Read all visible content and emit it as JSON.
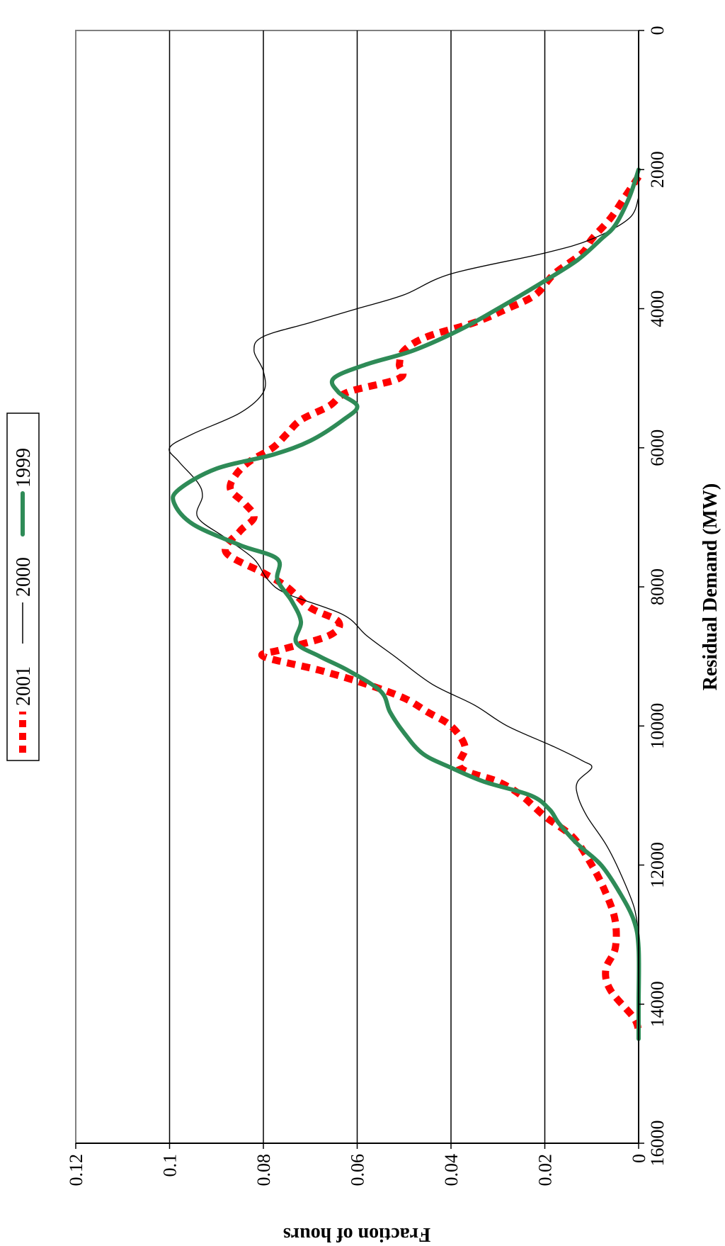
{
  "chart_data": {
    "type": "line",
    "title": "",
    "xlabel": "Residual Demand (MW)",
    "ylabel": "Fraction of hours",
    "xlim": [
      0,
      16000
    ],
    "ylim": [
      0,
      0.12
    ],
    "x_ticks": [
      0,
      2000,
      4000,
      6000,
      8000,
      10000,
      12000,
      14000,
      16000
    ],
    "y_ticks": [
      0,
      0.02,
      0.04,
      0.06,
      0.08,
      0.1,
      0.12
    ],
    "x_tick_labels": [
      "0",
      "2000",
      "4000",
      "6000",
      "8000",
      "10000",
      "12000",
      "14000",
      "16000"
    ],
    "y_tick_labels": [
      "0",
      "0.02",
      "0.04",
      "0.06",
      "0.08",
      "0.1",
      "0.12"
    ],
    "grid": "horizontal",
    "legend_position": "top",
    "orientation": "rotated-90",
    "series": [
      {
        "name": "2001",
        "color": "#ff0000",
        "style": "dashed",
        "points": [
          [
            2100,
            0.0
          ],
          [
            2400,
            0.003
          ],
          [
            2700,
            0.006
          ],
          [
            3000,
            0.01
          ],
          [
            3200,
            0.012
          ],
          [
            3500,
            0.018
          ],
          [
            3800,
            0.022
          ],
          [
            4000,
            0.028
          ],
          [
            4200,
            0.035
          ],
          [
            4400,
            0.045
          ],
          [
            4600,
            0.05
          ],
          [
            4800,
            0.051
          ],
          [
            5000,
            0.051
          ],
          [
            5200,
            0.062
          ],
          [
            5400,
            0.066
          ],
          [
            5600,
            0.072
          ],
          [
            5800,
            0.075
          ],
          [
            6000,
            0.078
          ],
          [
            6200,
            0.083
          ],
          [
            6400,
            0.086
          ],
          [
            6600,
            0.087
          ],
          [
            6800,
            0.084
          ],
          [
            7000,
            0.082
          ],
          [
            7200,
            0.085
          ],
          [
            7500,
            0.088
          ],
          [
            7800,
            0.08
          ],
          [
            8000,
            0.075
          ],
          [
            8300,
            0.07
          ],
          [
            8500,
            0.064
          ],
          [
            8700,
            0.066
          ],
          [
            8900,
            0.076
          ],
          [
            9000,
            0.08
          ],
          [
            9200,
            0.068
          ],
          [
            9400,
            0.058
          ],
          [
            9600,
            0.05
          ],
          [
            9800,
            0.045
          ],
          [
            10000,
            0.04
          ],
          [
            10300,
            0.037
          ],
          [
            10600,
            0.038
          ],
          [
            10800,
            0.03
          ],
          [
            11000,
            0.025
          ],
          [
            11300,
            0.02
          ],
          [
            11600,
            0.014
          ],
          [
            12000,
            0.01
          ],
          [
            12400,
            0.007
          ],
          [
            12800,
            0.005
          ],
          [
            13200,
            0.005
          ],
          [
            13500,
            0.007
          ],
          [
            13800,
            0.006
          ],
          [
            14200,
            0.001
          ],
          [
            14400,
            0.0
          ]
        ]
      },
      {
        "name": "2000",
        "color": "#000000",
        "style": "solid-thin",
        "points": [
          [
            2400,
            0.0
          ],
          [
            2700,
            0.002
          ],
          [
            3000,
            0.01
          ],
          [
            3200,
            0.02
          ],
          [
            3500,
            0.04
          ],
          [
            3800,
            0.05
          ],
          [
            4000,
            0.06
          ],
          [
            4200,
            0.07
          ],
          [
            4400,
            0.08
          ],
          [
            4600,
            0.082
          ],
          [
            4900,
            0.08
          ],
          [
            5200,
            0.08
          ],
          [
            5500,
            0.085
          ],
          [
            5800,
            0.095
          ],
          [
            6000,
            0.1
          ],
          [
            6200,
            0.098
          ],
          [
            6500,
            0.094
          ],
          [
            6700,
            0.093
          ],
          [
            7000,
            0.094
          ],
          [
            7300,
            0.088
          ],
          [
            7600,
            0.082
          ],
          [
            7900,
            0.079
          ],
          [
            8100,
            0.075
          ],
          [
            8400,
            0.063
          ],
          [
            8700,
            0.058
          ],
          [
            9000,
            0.052
          ],
          [
            9400,
            0.044
          ],
          [
            9700,
            0.035
          ],
          [
            10000,
            0.028
          ],
          [
            10300,
            0.018
          ],
          [
            10500,
            0.012
          ],
          [
            10600,
            0.01
          ],
          [
            10800,
            0.013
          ],
          [
            11000,
            0.013
          ],
          [
            11300,
            0.011
          ],
          [
            11700,
            0.007
          ],
          [
            12100,
            0.004
          ],
          [
            12600,
            0.001
          ],
          [
            13000,
            0.0
          ]
        ]
      },
      {
        "name": "1999",
        "color": "#2e8b57",
        "style": "solid-thick",
        "points": [
          [
            2000,
            0.0
          ],
          [
            2400,
            0.002
          ],
          [
            2800,
            0.005
          ],
          [
            3000,
            0.008
          ],
          [
            3300,
            0.013
          ],
          [
            3600,
            0.02
          ],
          [
            4000,
            0.03
          ],
          [
            4300,
            0.038
          ],
          [
            4600,
            0.048
          ],
          [
            4800,
            0.058
          ],
          [
            5000,
            0.065
          ],
          [
            5200,
            0.064
          ],
          [
            5400,
            0.06
          ],
          [
            5600,
            0.063
          ],
          [
            5900,
            0.07
          ],
          [
            6100,
            0.078
          ],
          [
            6300,
            0.09
          ],
          [
            6600,
            0.098
          ],
          [
            6800,
            0.099
          ],
          [
            7100,
            0.095
          ],
          [
            7400,
            0.085
          ],
          [
            7600,
            0.077
          ],
          [
            7900,
            0.077
          ],
          [
            8200,
            0.074
          ],
          [
            8500,
            0.072
          ],
          [
            8800,
            0.073
          ],
          [
            9000,
            0.068
          ],
          [
            9200,
            0.062
          ],
          [
            9500,
            0.055
          ],
          [
            9800,
            0.053
          ],
          [
            10100,
            0.05
          ],
          [
            10400,
            0.046
          ],
          [
            10600,
            0.04
          ],
          [
            10800,
            0.033
          ],
          [
            11000,
            0.023
          ],
          [
            11200,
            0.019
          ],
          [
            11400,
            0.017
          ],
          [
            11700,
            0.013
          ],
          [
            12000,
            0.008
          ],
          [
            12400,
            0.004
          ],
          [
            12800,
            0.001
          ],
          [
            13200,
            0.0
          ],
          [
            14000,
            0.0
          ],
          [
            14500,
            0.0
          ]
        ]
      }
    ]
  }
}
